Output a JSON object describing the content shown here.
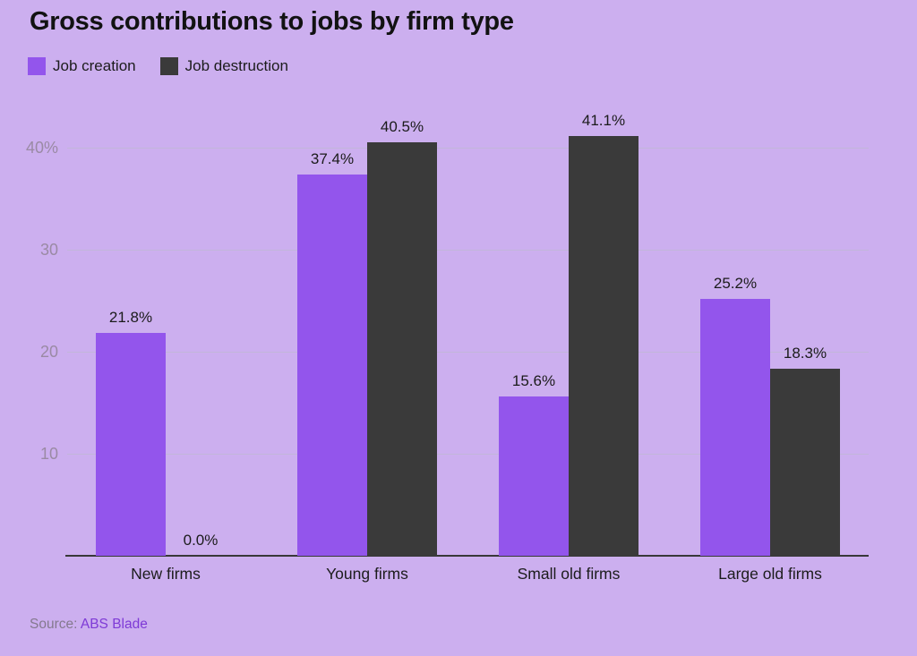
{
  "title": "Gross contributions to jobs by firm type",
  "legend": {
    "items": [
      {
        "label": "Job creation",
        "color": "#9355EC"
      },
      {
        "label": "Job destruction",
        "color": "#3A3A3A"
      }
    ]
  },
  "chart_data": {
    "type": "bar",
    "title": "Gross contributions to jobs by firm type",
    "xlabel": "",
    "ylabel": "",
    "categories": [
      "New firms",
      "Young firms",
      "Small old firms",
      "Large old firms"
    ],
    "series": [
      {
        "name": "Job creation",
        "color": "#9355EC",
        "values": [
          21.8,
          37.4,
          15.6,
          25.2
        ]
      },
      {
        "name": "Job destruction",
        "color": "#3A3A3A",
        "values": [
          0.0,
          40.5,
          41.1,
          18.3
        ]
      }
    ],
    "value_labels": [
      [
        "21.8%",
        "37.4%",
        "15.6%",
        "25.2%"
      ],
      [
        "0.0%",
        "40.5%",
        "41.1%",
        "18.3%"
      ]
    ],
    "ylim": [
      0,
      44
    ],
    "yticks": [
      {
        "value": 10,
        "label": "10"
      },
      {
        "value": 20,
        "label": "20"
      },
      {
        "value": 30,
        "label": "30"
      },
      {
        "value": 40,
        "label": "40%"
      }
    ],
    "grid": true,
    "legend_position": "top-left"
  },
  "source": {
    "prefix": "Source: ",
    "name": "ABS Blade"
  },
  "colors": {
    "background": "#CCAFEF",
    "job_creation": "#9355EC",
    "job_destruction": "#3A3A3A",
    "gridline": "#C2B6DA",
    "axis_line": "#383838",
    "y_tick_text": "#9A8AA4",
    "text": "#1C1C1C",
    "source_prefix": "#84798E",
    "source_link": "#7E3AD6"
  }
}
